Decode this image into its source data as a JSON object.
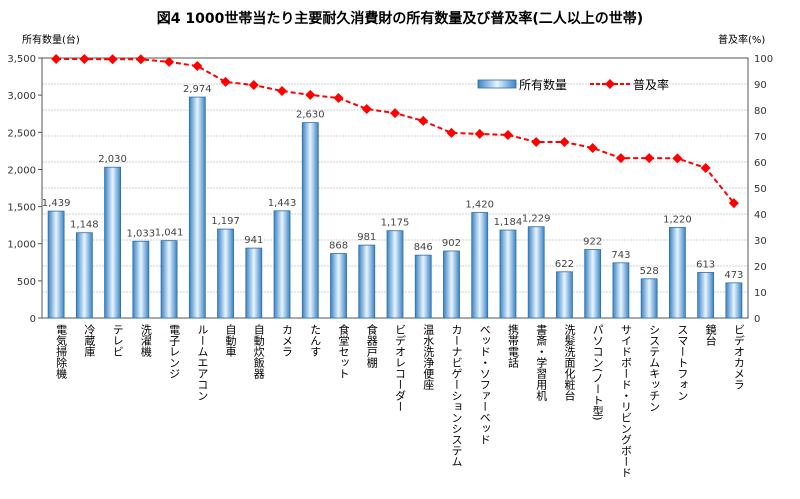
{
  "title": "図4 1000世帯当たり主要耐久消費財の所有数量及び普及率(二人以上の世帯)",
  "chart_data": {
    "type": "bar+line",
    "title": "図4 1000世帯当たり主要耐久消費財の所有数量及び普及率(二人以上の世帯)",
    "ylabel_left": "所有数量(台)",
    "ylabel_right": "普及率(%)",
    "ylim_left": [
      0,
      3500
    ],
    "yticks_left": [
      "0",
      "500",
      "1,000",
      "1,500",
      "2,000",
      "2,500",
      "3,000",
      "3,500"
    ],
    "ylim_right": [
      0,
      100
    ],
    "yticks_right": [
      "0",
      "10",
      "20",
      "30",
      "40",
      "50",
      "60",
      "70",
      "80",
      "90",
      "100"
    ],
    "grid": true,
    "legend_position": "top-right",
    "categories": [
      "電気掃除機",
      "冷蔵庫",
      "テレビ",
      "洗濯機",
      "電子レンジ",
      "ルームエアコン",
      "自動車",
      "自動炊飯器",
      "カメラ",
      "たんす",
      "食堂セット",
      "食器戸棚",
      "ビデオレコーダー",
      "温水洗浄便座",
      "カーナビゲーションシステム",
      "ベッド・ソファーベッド",
      "携帯電話",
      "書斎・学習用机",
      "洗髪洗面化粧台",
      "パソコン(ノート型)",
      "サイドボード・リビングボード",
      "システムキッチン",
      "スマートフォン",
      "鏡台",
      "ビデオカメラ"
    ],
    "series": [
      {
        "name": "所有数量",
        "type": "bar",
        "axis": "left",
        "color": "#5b9bd5",
        "values": [
          1439,
          1148,
          2030,
          1033,
          1041,
          2974,
          1197,
          941,
          1443,
          2630,
          868,
          981,
          1175,
          846,
          902,
          1420,
          1184,
          1229,
          622,
          922,
          743,
          528,
          1220,
          613,
          473
        ],
        "labels": [
          "1,439",
          "1,148",
          "2,030",
          "1,033",
          "1,041",
          "2,974",
          "1,197",
          "941",
          "1,443",
          "2,630",
          "868",
          "981",
          "1,175",
          "846",
          "902",
          "1,420",
          "1,184",
          "1,229",
          "622",
          "922",
          "743",
          "528",
          "1,220",
          "613",
          "473"
        ]
      },
      {
        "name": "普及率",
        "type": "line",
        "axis": "right",
        "color": "#ff0000",
        "values": [
          99.6,
          99.6,
          99.5,
          99.5,
          98.5,
          96.9,
          90.8,
          89.6,
          87.3,
          85.8,
          84.6,
          80.4,
          78.8,
          75.8,
          71.2,
          70.8,
          70.4,
          67.7,
          67.7,
          65.4,
          61.5,
          61.5,
          61.4,
          57.7,
          44.2
        ]
      }
    ]
  }
}
